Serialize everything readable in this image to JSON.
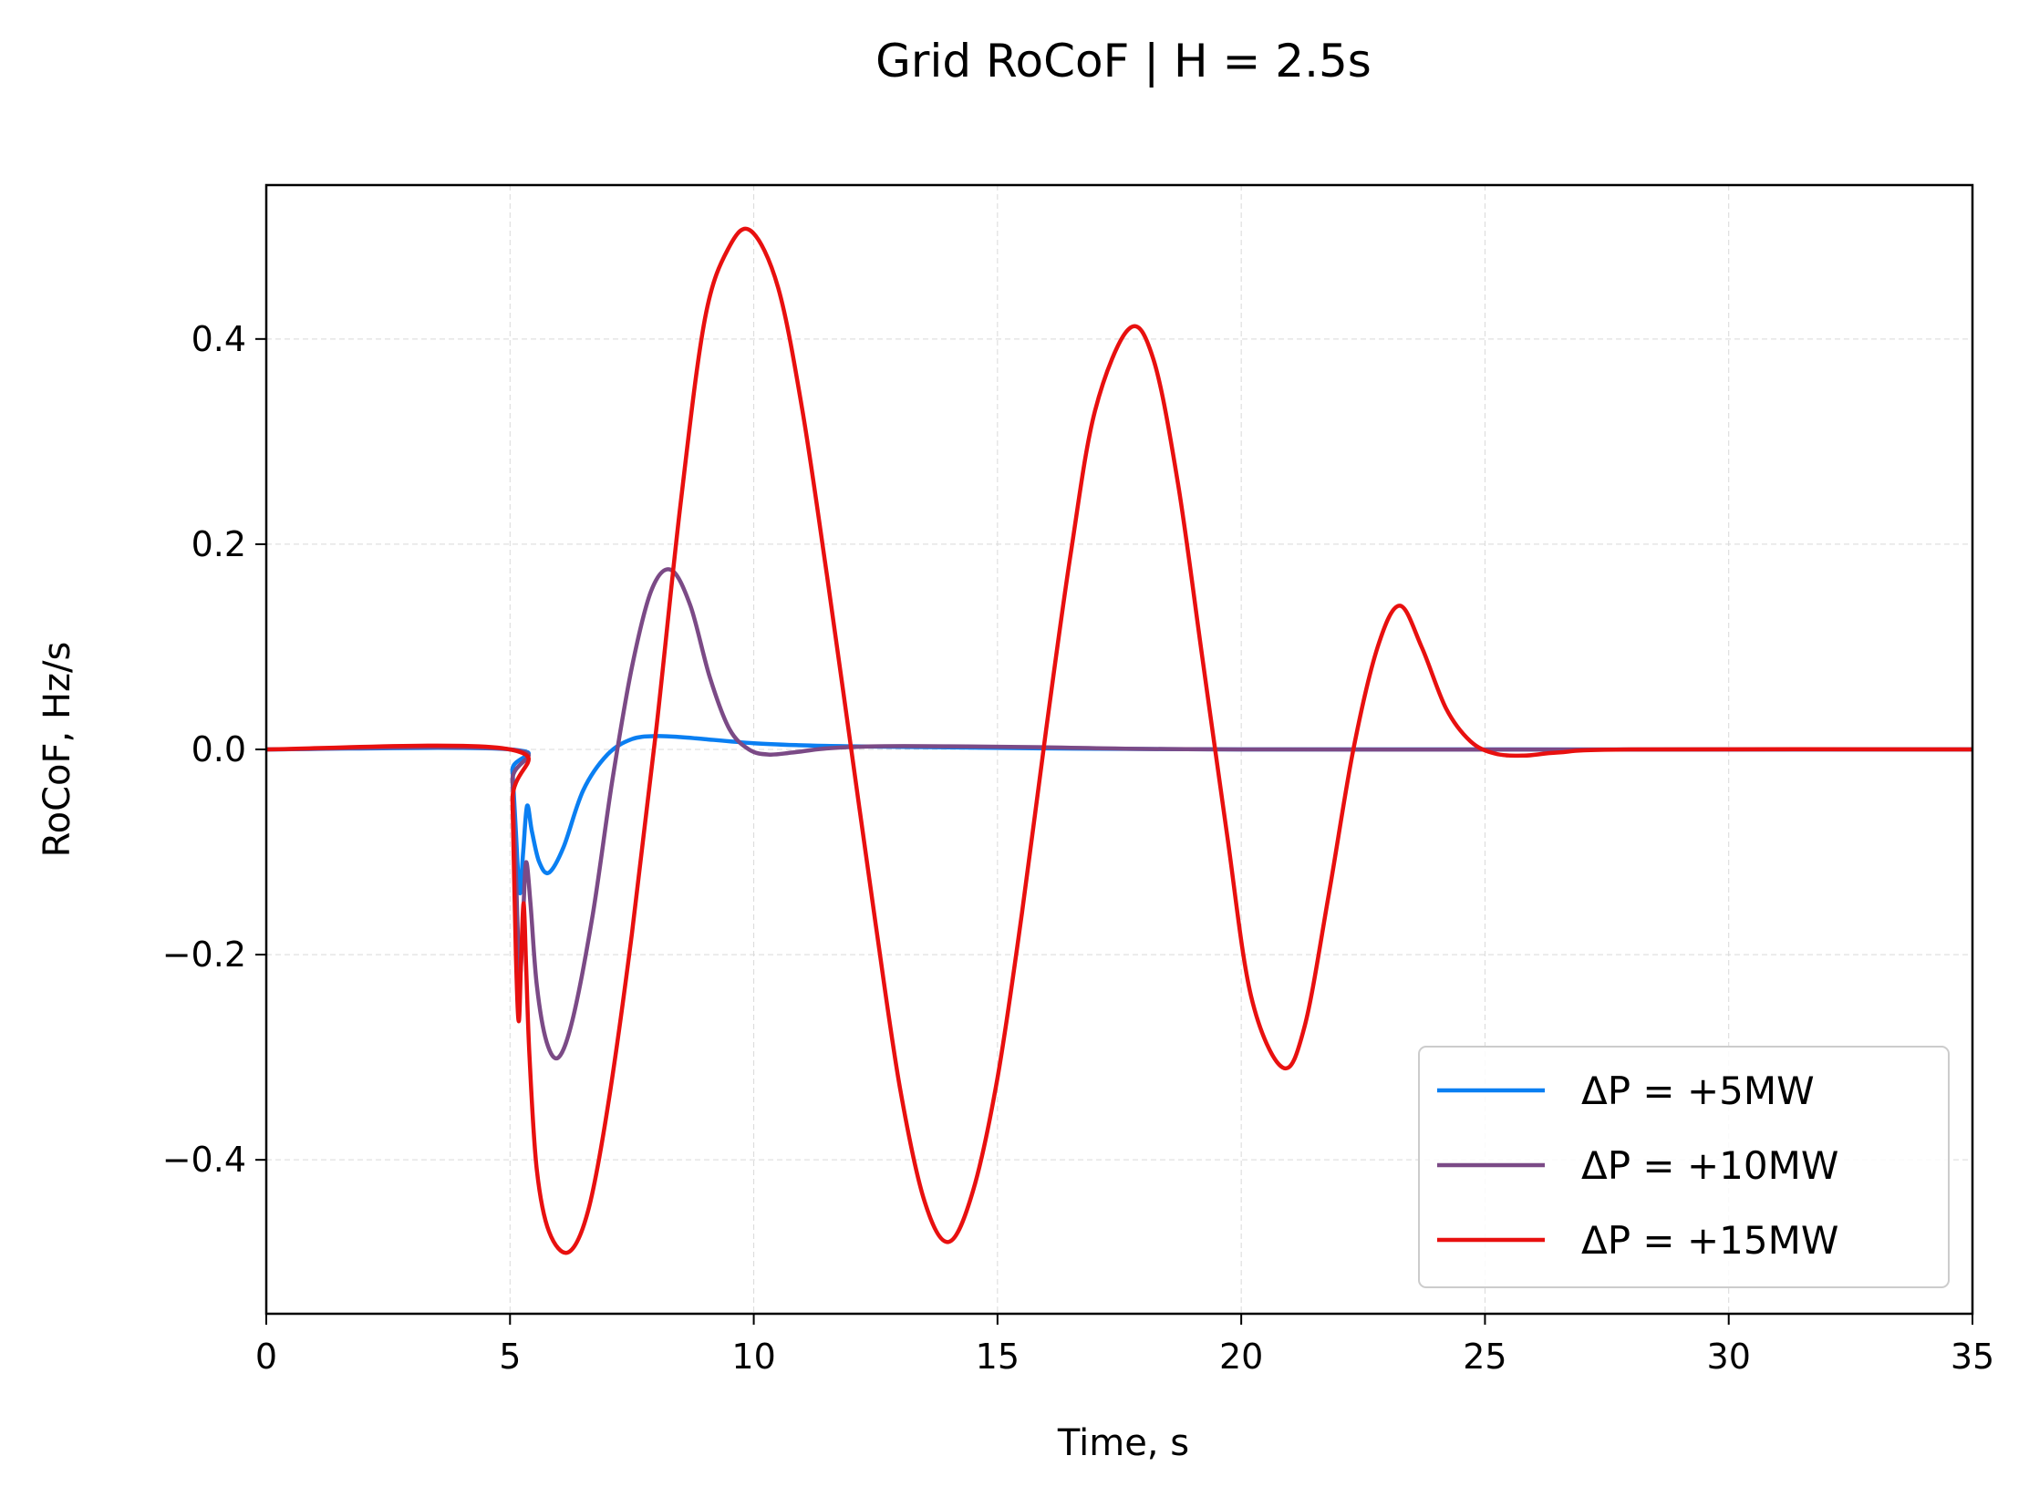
{
  "chart_data": {
    "type": "line",
    "title": "Grid RoCoF  |  H = 2.5s",
    "xlabel": "Time, s",
    "ylabel": "RoCoF, Hz/s",
    "xlim": [
      0,
      35
    ],
    "ylim": [
      -0.55,
      0.55
    ],
    "xticks": [
      0,
      5,
      10,
      15,
      20,
      25,
      30,
      35
    ],
    "xtick_labels": [
      "0",
      "5",
      "10",
      "15",
      "20",
      "25",
      "30",
      "35"
    ],
    "yticks": [
      -0.4,
      -0.2,
      0.0,
      0.2,
      0.4
    ],
    "ytick_labels": [
      "−0.4",
      "−0.2",
      "0.0",
      "0.2",
      "0.4"
    ],
    "grid": true,
    "legend": "lower-right",
    "series": [
      {
        "name": "ΔP = +5MW",
        "color": "#0a7ff2",
        "x": [
          0,
          5.0,
          5.05,
          5.12,
          5.2,
          5.27,
          5.35,
          5.45,
          5.6,
          5.8,
          6.1,
          6.5,
          7.0,
          7.5,
          8.0,
          8.5,
          9.0,
          10.0,
          11.0,
          12.0,
          14.0,
          16.0,
          20.0,
          35.0
        ],
        "y": [
          0,
          0,
          -0.02,
          -0.08,
          -0.14,
          -0.1,
          -0.055,
          -0.08,
          -0.11,
          -0.12,
          -0.095,
          -0.04,
          -0.005,
          0.01,
          0.013,
          0.012,
          0.01,
          0.006,
          0.004,
          0.003,
          0.002,
          0.001,
          0.0,
          0.0
        ]
      },
      {
        "name": "ΔP = +10MW",
        "color": "#7b4a86",
        "x": [
          0,
          5.0,
          5.05,
          5.12,
          5.2,
          5.27,
          5.33,
          5.42,
          5.55,
          5.75,
          6.0,
          6.3,
          6.7,
          7.1,
          7.5,
          7.9,
          8.3,
          8.7,
          9.1,
          9.5,
          9.9,
          10.3,
          10.8,
          11.5,
          12.5,
          14.0,
          16.0,
          20.0,
          35.0
        ],
        "y": [
          0,
          0,
          -0.03,
          -0.12,
          -0.22,
          -0.16,
          -0.11,
          -0.15,
          -0.23,
          -0.285,
          -0.3,
          -0.26,
          -0.16,
          -0.03,
          0.08,
          0.155,
          0.175,
          0.14,
          0.07,
          0.02,
          0.0,
          -0.005,
          -0.003,
          0.001,
          0.003,
          0.003,
          0.002,
          0.0,
          0.0
        ]
      },
      {
        "name": "ΔP = +15MW",
        "color": "#e8100f",
        "x": [
          0,
          5.0,
          5.05,
          5.12,
          5.18,
          5.23,
          5.28,
          5.33,
          5.4,
          5.55,
          5.8,
          6.2,
          6.6,
          7.0,
          7.5,
          8.0,
          8.5,
          9.0,
          9.5,
          9.95,
          10.5,
          11.0,
          11.5,
          12.0,
          12.5,
          13.0,
          13.5,
          14.0,
          14.5,
          15.0,
          15.5,
          16.0,
          16.5,
          17.0,
          17.7,
          18.2,
          18.7,
          19.2,
          19.7,
          20.2,
          20.85,
          21.3,
          21.8,
          22.3,
          22.8,
          23.25,
          23.7,
          24.2,
          24.7,
          25.2,
          25.8,
          26.5,
          28.0,
          35.0
        ],
        "y": [
          0,
          0,
          -0.05,
          -0.2,
          -0.265,
          -0.2,
          -0.15,
          -0.21,
          -0.3,
          -0.41,
          -0.47,
          -0.49,
          -0.45,
          -0.35,
          -0.18,
          0.02,
          0.24,
          0.42,
          0.49,
          0.505,
          0.45,
          0.33,
          0.17,
          0.0,
          -0.17,
          -0.33,
          -0.44,
          -0.48,
          -0.43,
          -0.32,
          -0.16,
          0.02,
          0.19,
          0.33,
          0.41,
          0.38,
          0.26,
          0.09,
          -0.08,
          -0.24,
          -0.31,
          -0.27,
          -0.14,
          0.0,
          0.1,
          0.14,
          0.1,
          0.04,
          0.008,
          -0.004,
          -0.006,
          -0.003,
          0.0,
          0.0
        ]
      }
    ]
  }
}
